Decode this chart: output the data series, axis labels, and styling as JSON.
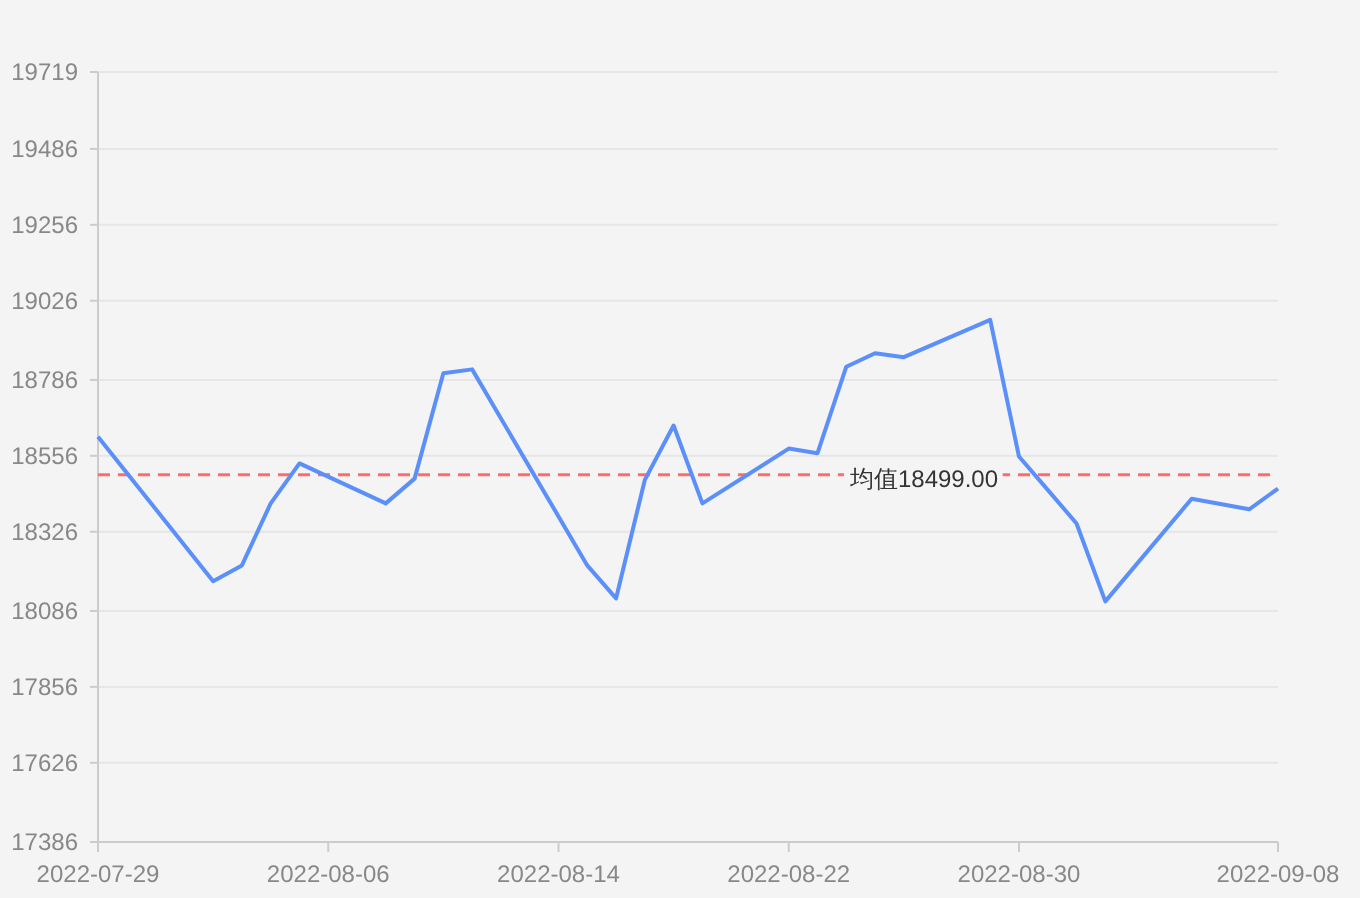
{
  "chart_data": {
    "type": "line",
    "x": [
      "2022-07-29",
      "2022-08-02",
      "2022-08-03",
      "2022-08-04",
      "2022-08-05",
      "2022-08-08",
      "2022-08-09",
      "2022-08-10",
      "2022-08-11",
      "2022-08-15",
      "2022-08-16",
      "2022-08-17",
      "2022-08-18",
      "2022-08-19",
      "2022-08-22",
      "2022-08-23",
      "2022-08-24",
      "2022-08-25",
      "2022-08-26",
      "2022-08-29",
      "2022-08-30",
      "2022-08-31",
      "2022-09-01",
      "2022-09-02",
      "2022-09-05",
      "2022-09-07",
      "2022-09-08"
    ],
    "series": [
      {
        "color": "#5b8ff9",
        "values": [
          18614,
          18176,
          18224,
          18412,
          18533,
          18412,
          18487,
          18806,
          18818,
          18224,
          18124,
          18483,
          18648,
          18412,
          18578,
          18564,
          18826,
          18867,
          18855,
          18968,
          18554,
          18453,
          18351,
          18115,
          18426,
          18394,
          18457
        ]
      }
    ],
    "xlim": [
      "2022-07-29",
      "2022-09-08"
    ],
    "xticks": [
      "2022-07-29",
      "2022-08-06",
      "2022-08-14",
      "2022-08-22",
      "2022-08-30",
      "2022-09-08"
    ],
    "ylim": [
      17386,
      19719
    ],
    "yticks": [
      17386,
      17626,
      17856,
      18086,
      18326,
      18556,
      18786,
      19026,
      19256,
      19486,
      19719
    ],
    "grid": "y",
    "marker": "none",
    "line_style": "solid",
    "ref_lines": [
      {
        "axis": "y",
        "value": 18499,
        "label": "均值18499.00",
        "color": "#ff6b6b",
        "line_style": "dashed"
      }
    ]
  }
}
